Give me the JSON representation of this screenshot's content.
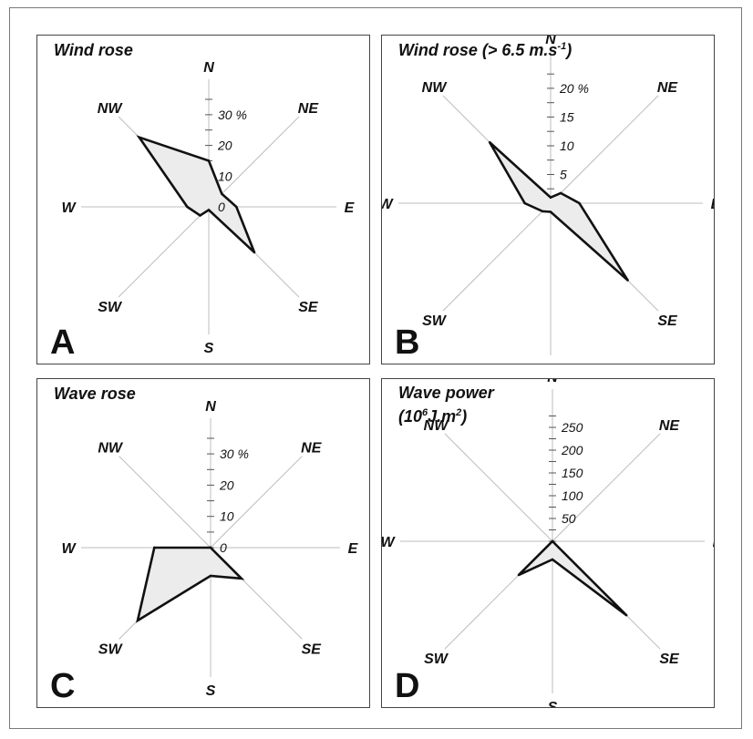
{
  "chart_data": [
    {
      "type": "radar",
      "panel_letter": "A",
      "title": "Wind rose",
      "directions": [
        "N",
        "NE",
        "E",
        "SE",
        "S",
        "SW",
        "W",
        "NW"
      ],
      "axis_max": 35,
      "ticks": [
        {
          "value": 0,
          "label": "0"
        },
        {
          "value": 10,
          "label": "10"
        },
        {
          "value": 20,
          "label": "20"
        },
        {
          "value": 30,
          "label": "30 %"
        }
      ],
      "values": [
        15,
        6,
        9,
        21,
        1,
        4,
        7,
        32
      ]
    },
    {
      "type": "radar",
      "panel_letter": "B",
      "title": "Wind rose (> 6.5 m.s",
      "title_sup": "-1",
      "title_end": ")",
      "directions": [
        "N",
        "NE",
        "E",
        "SE",
        "S",
        "SW",
        "W",
        "NW"
      ],
      "axis_max": 23,
      "ticks": [
        {
          "value": 5,
          "label": "5"
        },
        {
          "value": 10,
          "label": "10"
        },
        {
          "value": 15,
          "label": "15"
        },
        {
          "value": 20,
          "label": "20 %"
        }
      ],
      "values": [
        1,
        2.5,
        5,
        19,
        1.5,
        2,
        4.5,
        15
      ]
    },
    {
      "type": "radar",
      "panel_letter": "C",
      "title": "Wave rose",
      "directions": [
        "N",
        "NE",
        "E",
        "SE",
        "S",
        "SW",
        "W",
        "NW"
      ],
      "axis_max": 35,
      "ticks": [
        {
          "value": 0,
          "label": "0"
        },
        {
          "value": 10,
          "label": "10"
        },
        {
          "value": 20,
          "label": "20"
        },
        {
          "value": 30,
          "label": "30 %"
        }
      ],
      "values": [
        0,
        0,
        0,
        14,
        9,
        33,
        18,
        0
      ]
    },
    {
      "type": "radar",
      "panel_letter": "D",
      "title": "Wave power",
      "title_line2_a": "(10",
      "title_line2_sup": "6",
      "title_line2_b": "J.m",
      "title_line2_sup2": "2",
      "title_line2_c": ")",
      "directions": [
        "N",
        "NE",
        "E",
        "SE",
        "S",
        "SW",
        "W",
        "NW"
      ],
      "axis_max": 290,
      "ticks": [
        {
          "value": 50,
          "label": "50"
        },
        {
          "value": 100,
          "label": "100"
        },
        {
          "value": 150,
          "label": "150"
        },
        {
          "value": 200,
          "label": "200"
        },
        {
          "value": 250,
          "label": "250"
        }
      ],
      "values": [
        0,
        0,
        0,
        230,
        40,
        105,
        0,
        0
      ]
    }
  ]
}
